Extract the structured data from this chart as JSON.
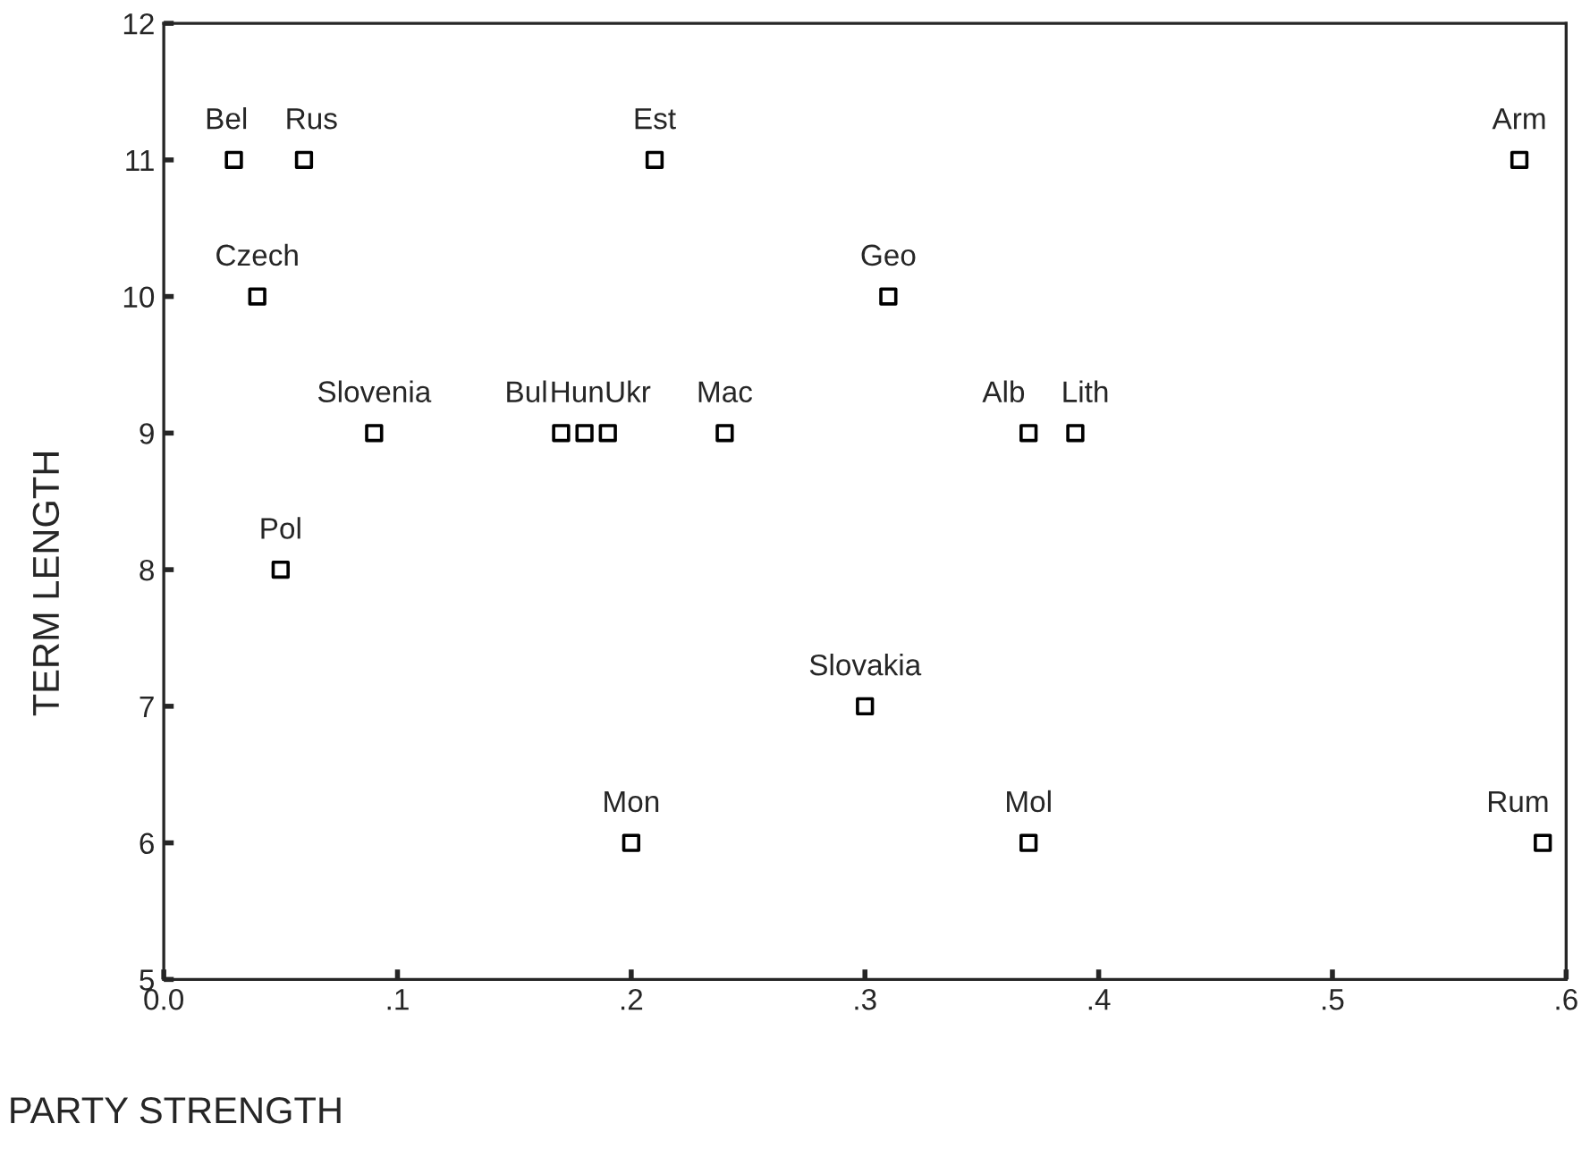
{
  "chart_data": {
    "type": "scatter",
    "xlabel": "PARTY STRENGTH",
    "ylabel": "TERM LENGTH",
    "series": [
      {
        "color": "#000000",
        "marker": "square",
        "x": [
          0.03,
          0.06,
          0.21,
          0.58,
          0.04,
          0.31,
          0.09,
          0.17,
          0.18,
          0.19,
          0.24,
          0.37,
          0.39,
          0.05,
          0.3,
          0.2,
          0.37,
          0.59
        ],
        "values": [
          11,
          11,
          11,
          11,
          10,
          10,
          9,
          9,
          9,
          9,
          9,
          9,
          9,
          8,
          7,
          6,
          6,
          6
        ]
      }
    ],
    "annotations": [
      {
        "text": "Bel",
        "x": 0.03,
        "y": 11
      },
      {
        "text": "Rus",
        "x": 0.06,
        "y": 11
      },
      {
        "text": "Est",
        "x": 0.21,
        "y": 11
      },
      {
        "text": "Arm",
        "x": 0.58,
        "y": 11
      },
      {
        "text": "Czech",
        "x": 0.04,
        "y": 10
      },
      {
        "text": "Geo",
        "x": 0.31,
        "y": 10
      },
      {
        "text": "Slovenia",
        "x": 0.09,
        "y": 9
      },
      {
        "text": "Bul",
        "x": 0.17,
        "y": 9
      },
      {
        "text": "Hun",
        "x": 0.18,
        "y": 9
      },
      {
        "text": "Ukr",
        "x": 0.19,
        "y": 9
      },
      {
        "text": "Mac",
        "x": 0.24,
        "y": 9
      },
      {
        "text": "Alb",
        "x": 0.37,
        "y": 9
      },
      {
        "text": "Lith",
        "x": 0.39,
        "y": 9
      },
      {
        "text": "Pol",
        "x": 0.05,
        "y": 8
      },
      {
        "text": "Slovakia",
        "x": 0.3,
        "y": 7
      },
      {
        "text": "Mon",
        "x": 0.2,
        "y": 6
      },
      {
        "text": "Mol",
        "x": 0.37,
        "y": 6
      },
      {
        "text": "Rum",
        "x": 0.59,
        "y": 6
      }
    ],
    "xlim": [
      0,
      0.6
    ],
    "ylim": [
      5,
      12
    ],
    "xticks": [
      {
        "value": 0,
        "label": "0.0"
      },
      {
        "value": 0.1,
        "label": ".1"
      },
      {
        "value": 0.2,
        "label": ".2"
      },
      {
        "value": 0.3,
        "label": ".3"
      },
      {
        "value": 0.4,
        "label": ".4"
      },
      {
        "value": 0.5,
        "label": ".5"
      },
      {
        "value": 0.6,
        "label": ".6"
      }
    ],
    "yticks": [
      5,
      6,
      7,
      8,
      9,
      10,
      11,
      12
    ],
    "grid": false,
    "legend": false
  }
}
